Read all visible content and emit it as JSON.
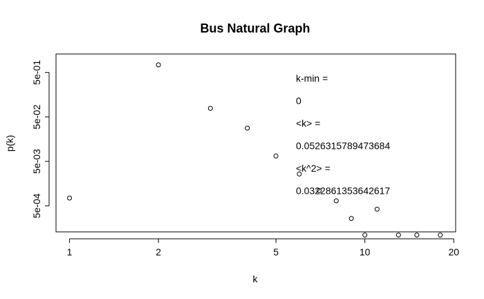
{
  "chart_data": {
    "type": "scatter",
    "title": "Bus Natural Graph",
    "xlabel": "k",
    "ylabel": "p(k)",
    "x_scale": "log",
    "y_scale": "log",
    "xlim": [
      0.9,
      20.3
    ],
    "ylim": [
      0.00013,
      1.3
    ],
    "x_ticks": [
      1,
      2,
      5,
      10,
      20
    ],
    "x_tick_labels": [
      "1",
      "2",
      "5",
      "10",
      "20"
    ],
    "y_ticks": [
      0.0005,
      0.005,
      0.05,
      0.5
    ],
    "y_tick_labels": [
      "5e-04",
      "5e-03",
      "5e-02",
      "5e-01"
    ],
    "points": [
      {
        "x": 1,
        "y": 0.00075
      },
      {
        "x": 2,
        "y": 0.74
      },
      {
        "x": 3,
        "y": 0.078
      },
      {
        "x": 4,
        "y": 0.028
      },
      {
        "x": 5,
        "y": 0.0066
      },
      {
        "x": 6,
        "y": 0.0026
      },
      {
        "x": 7,
        "y": 0.0011
      },
      {
        "x": 8,
        "y": 0.00065
      },
      {
        "x": 9,
        "y": 0.00026
      },
      {
        "x": 10,
        "y": 0.00011
      },
      {
        "x": 11,
        "y": 0.00042
      },
      {
        "x": 13,
        "y": 0.00011
      },
      {
        "x": 15,
        "y": 0.00011
      },
      {
        "x": 18,
        "y": 0.00011
      }
    ],
    "annotations": [
      "k-min =",
      "0",
      "<k> =",
      "0.0526315789473684",
      "<k^2> =",
      "0.0322861353642617"
    ],
    "grid": false,
    "legend": "none"
  }
}
